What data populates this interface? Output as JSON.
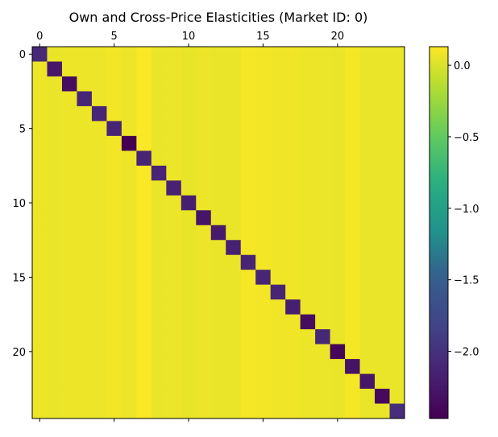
{
  "chart_data": {
    "type": "heatmap",
    "title": "Own and Cross-Price Elasticities (Market ID: 0)",
    "xlabel": "",
    "ylabel": "",
    "colormap": "viridis",
    "n_rows": 25,
    "n_cols": 25,
    "x_ticks": [
      "0",
      "5",
      "10",
      "15",
      "20"
    ],
    "x_tick_values": [
      0,
      5,
      10,
      15,
      20
    ],
    "x_tick_position": "top",
    "y_ticks": [
      "0",
      "5",
      "10",
      "15",
      "20"
    ],
    "y_tick_values": [
      0,
      5,
      10,
      15,
      20
    ],
    "colorbar_ticks": [
      "0.0",
      "−0.5",
      "−1.0",
      "−1.5",
      "−2.0"
    ],
    "colorbar_tick_values": [
      0.0,
      -0.5,
      -1.0,
      -1.5,
      -2.0
    ],
    "vmin": -2.47,
    "vmax": 0.13,
    "diagonal_values": [
      -2.08,
      -2.25,
      -2.36,
      -2.11,
      -2.12,
      -2.13,
      -2.47,
      -2.13,
      -2.12,
      -2.16,
      -2.18,
      -2.28,
      -2.23,
      -2.16,
      -2.13,
      -2.11,
      -2.13,
      -2.18,
      -2.36,
      -2.1,
      -2.42,
      -2.3,
      -2.27,
      -2.38,
      -2.03
    ],
    "off_diagonal_by_column": [
      0.07,
      0.06,
      0.07,
      0.07,
      0.07,
      0.09,
      0.07,
      0.12,
      0.06,
      0.07,
      0.05,
      0.07,
      0.06,
      0.06,
      0.1,
      0.09,
      0.08,
      0.08,
      0.07,
      0.07,
      0.06,
      0.1,
      0.06,
      0.06,
      0.06
    ]
  }
}
